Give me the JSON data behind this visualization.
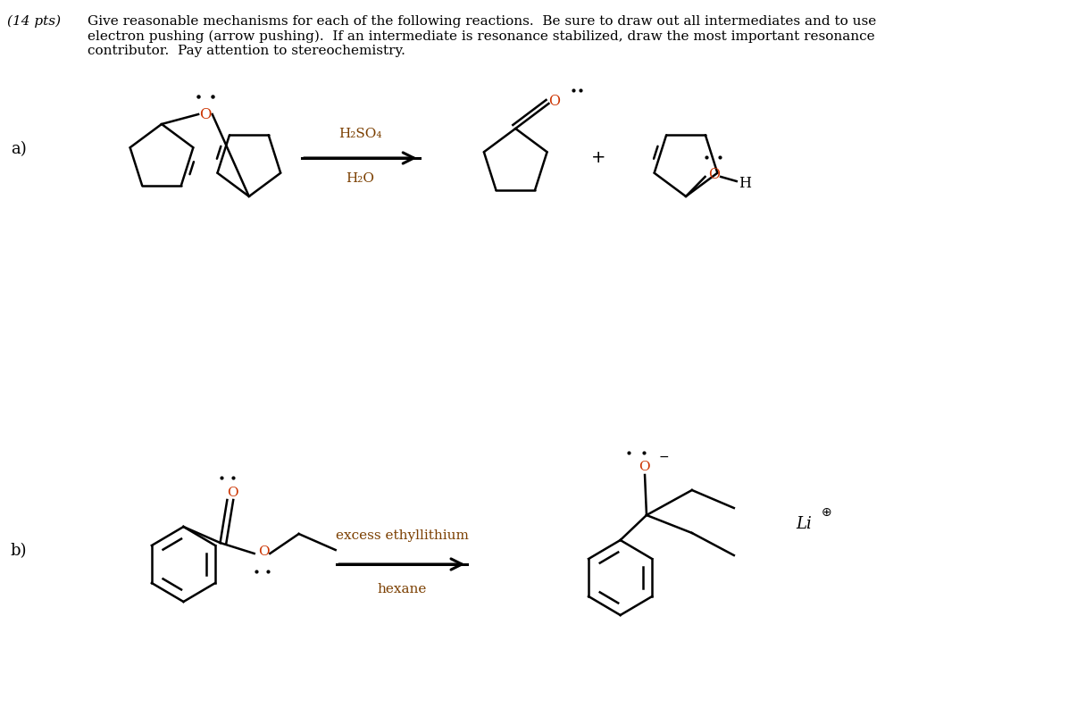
{
  "title_pts": "(14 pts)",
  "title_text": "Give reasonable mechanisms for each of the following reactions.  Be sure to draw out all intermediates and to use\nelectron pushing (arrow pushing).  If an intermediate is resonance stabilized, draw the most important resonance\ncontributor.  Pay attention to stereochemistry.",
  "label_a": "a)",
  "label_b": "b)",
  "reaction_a_above": "H₂SO₄",
  "reaction_a_below": "H₂O",
  "reaction_b_above": "excess ethyllithium",
  "reaction_b_below": "hexane",
  "bg_color": "#ffffff",
  "text_color": "#000000",
  "formula_color": "#7B3F00",
  "bond_color": "#000000",
  "oxygen_color": "#cc3300",
  "font_size_main": 11,
  "font_size_label": 13
}
